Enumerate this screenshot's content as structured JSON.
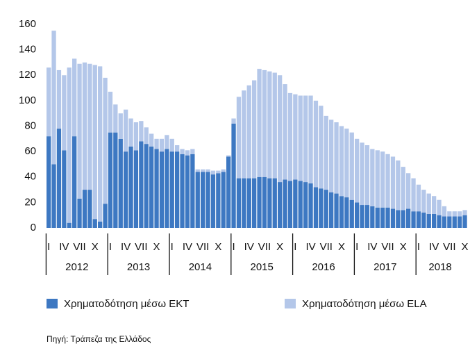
{
  "chart_data": {
    "type": "bar",
    "stacked": true,
    "categories": [
      "I",
      null,
      null,
      "IV",
      null,
      null,
      "VII",
      null,
      null,
      "X",
      null,
      null,
      "I",
      null,
      null,
      "IV",
      null,
      null,
      "VII",
      null,
      null,
      "X",
      null,
      null,
      "I",
      null,
      null,
      "IV",
      null,
      null,
      "VII",
      null,
      null,
      "X",
      null,
      null,
      "I",
      null,
      null,
      "IV",
      null,
      null,
      "VII",
      null,
      null,
      "X",
      null,
      null,
      "I",
      null,
      null,
      "IV",
      null,
      null,
      "VII",
      null,
      null,
      "X",
      null,
      null,
      "I",
      null,
      null,
      "IV",
      null,
      null,
      "VII",
      null,
      null,
      "X",
      null,
      null,
      "I",
      null,
      null,
      "IV",
      null,
      null,
      "VII",
      null,
      null,
      "X"
    ],
    "groups": [
      "2012",
      "2013",
      "2014",
      "2015",
      "2016",
      "2017",
      "2018"
    ],
    "series": [
      {
        "name": "Χρηματοδότηση μέσω ΕΚΤ",
        "color": "#3d78c2",
        "values": [
          72,
          50,
          78,
          61,
          4,
          72,
          23,
          30,
          30,
          7,
          5,
          19,
          75,
          75,
          70,
          60,
          64,
          61,
          68,
          66,
          64,
          62,
          60,
          62,
          60,
          60,
          58,
          57,
          58,
          44,
          44,
          44,
          42,
          43,
          44,
          56,
          82,
          39,
          39,
          39,
          39,
          40,
          40,
          39,
          39,
          36,
          38,
          37,
          38,
          37,
          36,
          35,
          32,
          31,
          30,
          28,
          27,
          25,
          24,
          22,
          20,
          18,
          18,
          17,
          16,
          16,
          16,
          15,
          14,
          14,
          15,
          13,
          13,
          12,
          11,
          11,
          10,
          9,
          9,
          9,
          9,
          10
        ]
      },
      {
        "name": "Χρηματοδότηση μέσω ELA",
        "color": "#b4c7e9",
        "values": [
          54,
          105,
          46,
          59,
          122,
          61,
          106,
          100,
          99,
          121,
          122,
          99,
          32,
          22,
          20,
          33,
          22,
          22,
          16,
          13,
          10,
          8,
          10,
          11,
          10,
          5,
          4,
          4,
          4,
          2,
          2,
          2,
          3,
          2,
          2,
          1,
          4,
          64,
          69,
          73,
          77,
          85,
          84,
          84,
          83,
          84,
          75,
          69,
          67,
          67,
          68,
          69,
          68,
          65,
          58,
          57,
          56,
          55,
          54,
          53,
          50,
          49,
          47,
          45,
          45,
          44,
          42,
          41,
          39,
          34,
          28,
          26,
          21,
          18,
          16,
          14,
          12,
          8,
          4,
          4,
          4,
          4
        ]
      }
    ],
    "ylim": [
      0,
      160
    ],
    "yticks": [
      0,
      20,
      40,
      60,
      80,
      100,
      120,
      140,
      160
    ],
    "grid": false,
    "source": "Πηγή: Τράπεζα της Ελλάδος"
  }
}
